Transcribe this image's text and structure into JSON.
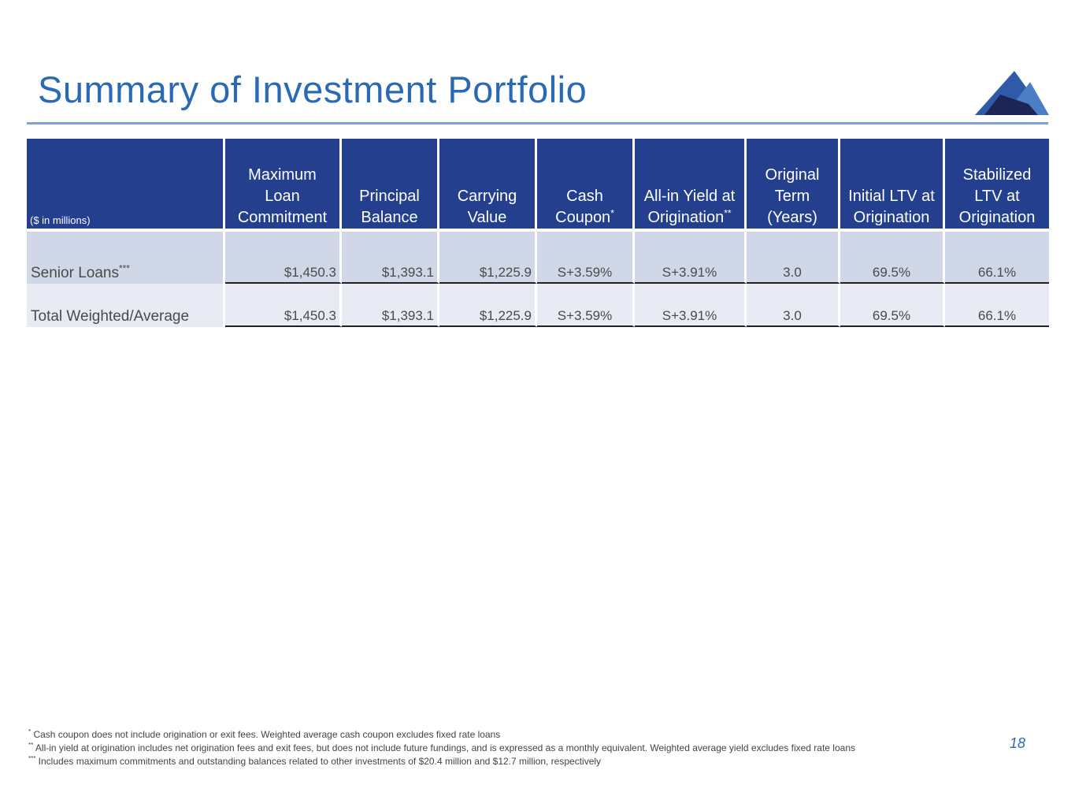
{
  "slide": {
    "title": "Summary of Investment Portfolio",
    "page_number": "18"
  },
  "table": {
    "units_label": "($ in millions)",
    "headers": [
      {
        "lines": [
          "Maximum",
          "Loan",
          "Commitment"
        ],
        "sup": ""
      },
      {
        "lines": [
          "Principal",
          "Balance"
        ],
        "sup": ""
      },
      {
        "lines": [
          "Carrying",
          "Value"
        ],
        "sup": ""
      },
      {
        "lines": [
          "Cash",
          "Coupon"
        ],
        "sup": "*"
      },
      {
        "lines": [
          "All-in Yield at",
          "Origination"
        ],
        "sup": "**"
      },
      {
        "lines": [
          "Original",
          "Term",
          "(Years)"
        ],
        "sup": ""
      },
      {
        "lines": [
          "Initial LTV at",
          "Origination"
        ],
        "sup": ""
      },
      {
        "lines": [
          "Stabilized",
          "LTV at",
          "Origination"
        ],
        "sup": ""
      }
    ],
    "rows": [
      {
        "label": "Senior Loans",
        "label_sup": "***",
        "values": [
          "$1,450.3",
          "$1,393.1",
          "$1,225.9",
          "S+3.59%",
          "S+3.91%",
          "3.0",
          "69.5%",
          "66.1%"
        ]
      },
      {
        "label": "Total Weighted/Average",
        "label_sup": "",
        "values": [
          "$1,450.3",
          "$1,393.1",
          "$1,225.9",
          "S+3.59%",
          "S+3.91%",
          "3.0",
          "69.5%",
          "66.1%"
        ]
      }
    ]
  },
  "footnotes": [
    {
      "marker": "*",
      "text": " Cash coupon does not include origination or exit fees. Weighted average cash coupon excludes fixed rate loans"
    },
    {
      "marker": "**",
      "text": " All-in yield at origination includes net origination fees and exit fees, but does not include future fundings, and is expressed as a monthly equivalent. Weighted average yield excludes fixed rate loans"
    },
    {
      "marker": "***",
      "text": " Includes maximum commitments and outstanding balances related to other investments of $20.4 million and $12.7 million, respectively"
    }
  ],
  "colors": {
    "title": "#2a6ab5",
    "header_bg": "#233f8e",
    "row1_bg": "#d0d7e7",
    "row2_bg": "#e8ebf4",
    "logo_light": "#4a7fc6",
    "logo_mid": "#2f5aa8",
    "logo_dark": "#1c2556"
  }
}
